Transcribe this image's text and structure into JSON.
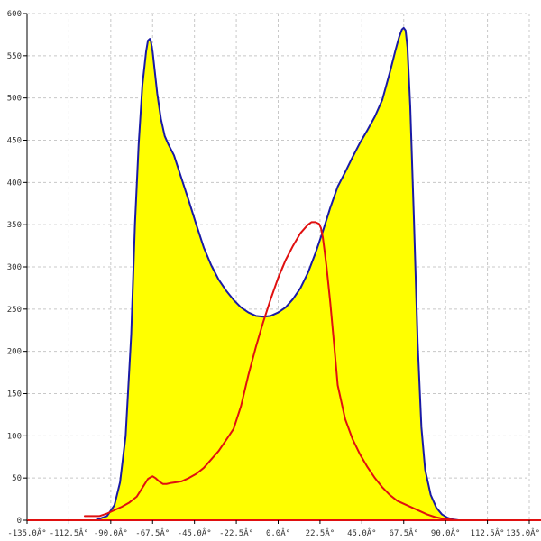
{
  "chart_data": {
    "type": "area",
    "title": "",
    "xlabel": "",
    "ylabel": "",
    "xlim": [
      -135,
      135
    ],
    "ylim": [
      0,
      600
    ],
    "grid": true,
    "x_ticks": [
      -135,
      -112.5,
      -90,
      -67.5,
      -45,
      -22.5,
      0,
      22.5,
      45,
      67.5,
      90,
      112.5,
      135
    ],
    "x_tick_labels": [
      "-135.0Â°",
      "-112.5Â°",
      "-90.0Â°",
      "-67.5Â°",
      "-45.0Â°",
      "-22.5Â°",
      "0.0Â°",
      "22.5Â°",
      "45.0Â°",
      "67.5Â°",
      "90.0Â°",
      "112.5Â°",
      "135.0Â°"
    ],
    "y_ticks": [
      0,
      50,
      100,
      150,
      200,
      250,
      300,
      350,
      400,
      450,
      500,
      550,
      600
    ],
    "y_tick_labels": [
      "0",
      "50",
      "100",
      "150",
      "200",
      "250",
      "300",
      "350",
      "400",
      "450",
      "500",
      "550",
      "600"
    ],
    "colors": {
      "fill": "#ffff00",
      "series_1": "#1a1aa6",
      "series_2": "#e01010",
      "axis": "#000000",
      "grid": "#c8c8c8"
    },
    "series": [
      {
        "style": "filled",
        "color": "#1a1aa6",
        "x": [
          -97,
          -92,
          -88,
          -85,
          -82,
          -79,
          -77,
          -75,
          -73,
          -71,
          -70,
          -69,
          -68.5,
          -67.5,
          -66.5,
          -65,
          -63,
          -61,
          -59,
          -56,
          -52,
          -48,
          -44,
          -40,
          -36,
          -32,
          -28,
          -24,
          -20,
          -16,
          -12,
          -8,
          -4,
          0,
          4,
          8,
          12,
          16,
          20,
          24,
          28,
          32,
          36,
          40,
          44,
          48,
          52,
          56,
          60,
          63,
          65,
          66.5,
          67.5,
          68.5,
          69.5,
          71,
          73,
          75,
          77,
          79,
          82,
          85,
          88,
          91,
          94,
          97,
          100
        ],
        "y": [
          1,
          5,
          18,
          45,
          100,
          220,
          350,
          445,
          515,
          555,
          568,
          570,
          568,
          555,
          535,
          505,
          475,
          455,
          445,
          432,
          405,
          378,
          350,
          323,
          302,
          285,
          272,
          261,
          252,
          246,
          242,
          241,
          242,
          246,
          252,
          262,
          275,
          293,
          316,
          342,
          370,
          395,
          412,
          430,
          447,
          462,
          478,
          498,
          530,
          556,
          572,
          581,
          583,
          580,
          560,
          490,
          355,
          210,
          110,
          60,
          30,
          15,
          7,
          3,
          1,
          0,
          0
        ]
      },
      {
        "style": "line",
        "color": "#e01010",
        "x": [
          -104,
          -96,
          -92,
          -88,
          -84,
          -80,
          -76,
          -74,
          -72,
          -70,
          -68.5,
          -67.5,
          -66,
          -64,
          -62,
          -60,
          -58,
          -55,
          -52,
          -48,
          -44,
          -40,
          -36,
          -32,
          -28,
          -24,
          -20,
          -16,
          -12,
          -8,
          -4,
          0,
          4,
          8,
          12,
          16,
          18,
          20,
          22,
          23,
          24,
          25,
          26,
          28,
          30,
          32,
          36,
          40,
          44,
          48,
          52,
          56,
          60,
          64,
          68,
          72,
          76,
          80,
          84,
          88,
          92,
          96,
          100
        ],
        "y": [
          5,
          5,
          8,
          12,
          16,
          21,
          28,
          35,
          42,
          49,
          51,
          52,
          50,
          46,
          43,
          43,
          44,
          45,
          46,
          50,
          55,
          62,
          72,
          82,
          95,
          108,
          135,
          172,
          205,
          235,
          262,
          287,
          308,
          325,
          340,
          350,
          353,
          353,
          351,
          346,
          335,
          318,
          300,
          258,
          210,
          160,
          120,
          96,
          78,
          63,
          50,
          39,
          30,
          23,
          19,
          15,
          11,
          7,
          4,
          2,
          1,
          0,
          0
        ]
      }
    ]
  }
}
